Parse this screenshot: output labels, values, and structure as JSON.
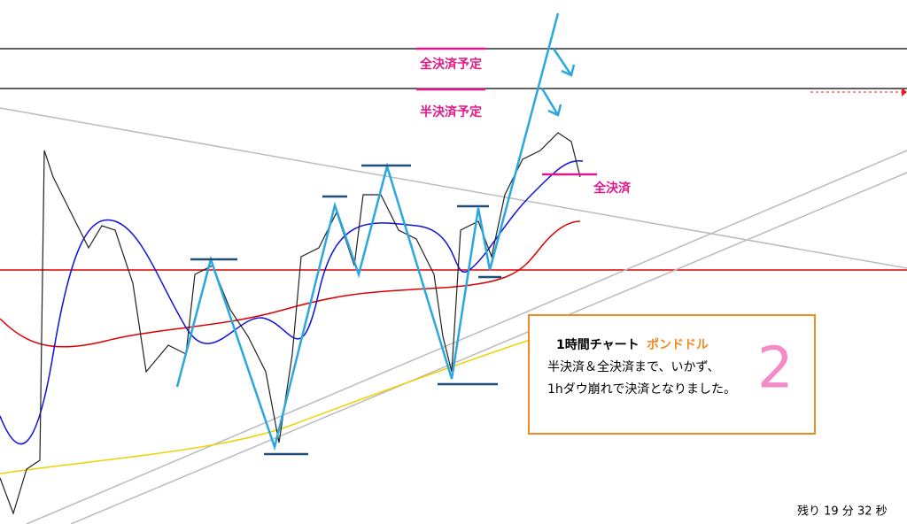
{
  "annotations": {
    "full_close_plan": "全決済予定",
    "half_close_plan": "半決済予定",
    "full_close": "全決済"
  },
  "note": {
    "timeframe": "1時間チャート",
    "pair": "ポンドドル",
    "line1": "半決済＆全決済まで、いかず、",
    "line2": "1hダウ崩れで決済となりました。",
    "number": "2"
  },
  "status": {
    "remaining": "残り 19 分 32 秒"
  }
}
